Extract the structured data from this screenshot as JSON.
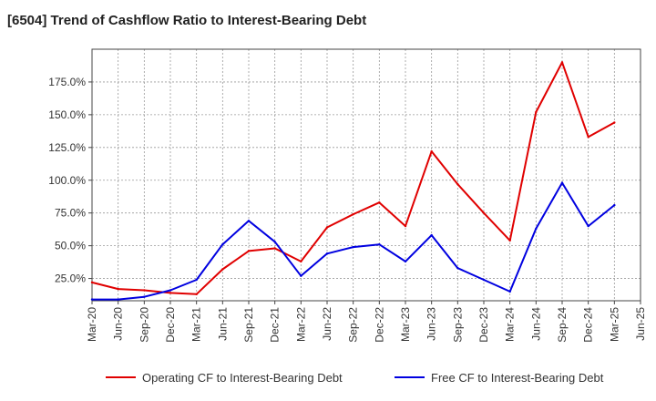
{
  "chart_data": {
    "type": "line",
    "title": "[6504]  Trend of Cashflow Ratio to Interest-Bearing Debt",
    "xlabel": "",
    "ylabel": "",
    "x_ticks": [
      "Mar-20",
      "Jun-20",
      "Sep-20",
      "Dec-20",
      "Mar-21",
      "Jun-21",
      "Sep-21",
      "Dec-21",
      "Mar-22",
      "Jun-22",
      "Sep-22",
      "Dec-22",
      "Mar-23",
      "Jun-23",
      "Sep-23",
      "Dec-23",
      "Mar-24",
      "Jun-24",
      "Sep-24",
      "Dec-24",
      "Mar-25",
      "Jun-25"
    ],
    "y_ticks": [
      "25.0%",
      "50.0%",
      "75.0%",
      "100.0%",
      "125.0%",
      "150.0%",
      "175.0%"
    ],
    "y_tick_values": [
      25,
      50,
      75,
      100,
      125,
      150,
      175
    ],
    "ylim": [
      8,
      200
    ],
    "grid": true,
    "legend_position": "bottom",
    "x": [
      "Mar-20",
      "Jun-20",
      "Sep-20",
      "Dec-20",
      "Mar-21",
      "Jun-21",
      "Sep-21",
      "Dec-21",
      "Mar-22",
      "Jun-22",
      "Sep-22",
      "Dec-22",
      "Mar-23",
      "Jun-23",
      "Sep-23",
      "Dec-23",
      "Mar-24",
      "Jun-24",
      "Sep-24",
      "Dec-24",
      "Mar-25"
    ],
    "series": [
      {
        "name": "Operating CF to Interest-Bearing Debt",
        "color": "#e00000",
        "values": [
          22,
          17,
          16,
          14,
          13,
          32,
          46,
          48,
          38,
          64,
          74,
          83,
          65,
          122,
          97,
          75,
          54,
          152,
          190,
          133,
          144
        ]
      },
      {
        "name": "Free CF to Interest-Bearing Debt",
        "color": "#0000e0",
        "values": [
          9,
          9,
          11,
          16,
          24,
          51,
          69,
          53,
          27,
          44,
          49,
          51,
          38,
          58,
          33,
          24,
          15,
          63,
          98,
          65,
          81
        ]
      }
    ]
  }
}
